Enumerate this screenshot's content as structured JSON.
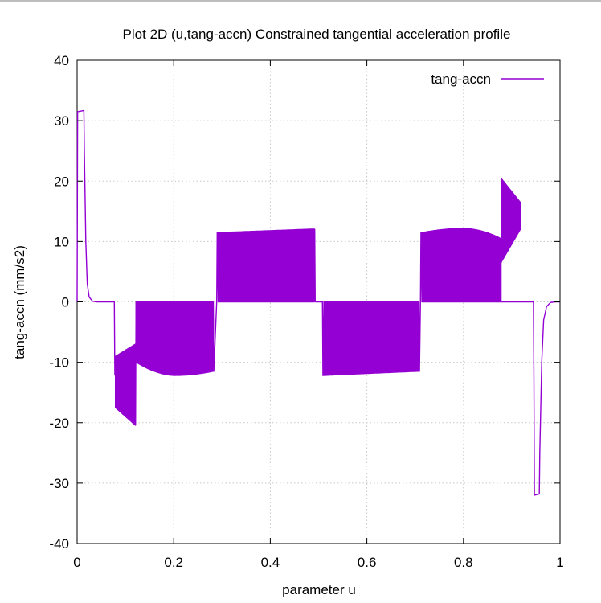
{
  "chart_data": {
    "type": "line",
    "title": "Plot 2D (u,tang-accn) Constrained tangential acceleration profile",
    "xlabel": "parameter u",
    "ylabel": "tang-accn (mm/s2)",
    "xlim": [
      0,
      1
    ],
    "ylim": [
      -40,
      40
    ],
    "x_ticks": [
      {
        "value": 0,
        "label": "0"
      },
      {
        "value": 0.2,
        "label": "0.2"
      },
      {
        "value": 0.4,
        "label": "0.4"
      },
      {
        "value": 0.6,
        "label": "0.6"
      },
      {
        "value": 0.8,
        "label": "0.8"
      },
      {
        "value": 1,
        "label": "1"
      }
    ],
    "y_ticks": [
      {
        "value": -40,
        "label": "-40"
      },
      {
        "value": -30,
        "label": "-30"
      },
      {
        "value": -20,
        "label": "-20"
      },
      {
        "value": -10,
        "label": "-10"
      },
      {
        "value": 0,
        "label": "0"
      },
      {
        "value": 10,
        "label": "10"
      },
      {
        "value": 20,
        "label": "20"
      },
      {
        "value": 30,
        "label": "30"
      },
      {
        "value": 40,
        "label": "40"
      }
    ],
    "grid": true,
    "legend": {
      "position": "top-right"
    },
    "series": [
      {
        "name": "tang-accn",
        "color": "#9400d3",
        "line_points": [
          {
            "x": 0.0,
            "y": 0.0
          },
          {
            "x": 0.001,
            "y": 31.5
          },
          {
            "x": 0.014,
            "y": 31.7
          },
          {
            "x": 0.015,
            "y": 25.0
          },
          {
            "x": 0.018,
            "y": 10.0
          },
          {
            "x": 0.021,
            "y": 3.0
          },
          {
            "x": 0.025,
            "y": 0.8
          },
          {
            "x": 0.032,
            "y": 0.1
          },
          {
            "x": 0.04,
            "y": 0.0
          },
          {
            "x": 0.077,
            "y": 0.0
          },
          {
            "x": 0.078,
            "y": -12.0
          },
          {
            "x": 0.121,
            "y": -20.4
          },
          {
            "x": 0.122,
            "y": 0.0
          },
          {
            "x": 0.282,
            "y": 0.0
          },
          {
            "x": 0.283,
            "y": -11.5
          },
          {
            "x": 0.289,
            "y": 0.0
          },
          {
            "x": 0.29,
            "y": 11.5
          },
          {
            "x": 0.292,
            "y": 0.0
          },
          {
            "x": 0.491,
            "y": 0.0
          },
          {
            "x": 0.492,
            "y": 12.0
          },
          {
            "x": 0.493,
            "y": 0.0
          },
          {
            "x": 0.508,
            "y": 0.0
          },
          {
            "x": 0.509,
            "y": -12.2
          },
          {
            "x": 0.511,
            "y": 0.0
          },
          {
            "x": 0.708,
            "y": 0.0
          },
          {
            "x": 0.709,
            "y": -11.5
          },
          {
            "x": 0.711,
            "y": 0.0
          },
          {
            "x": 0.712,
            "y": 11.5
          },
          {
            "x": 0.714,
            "y": 0.0
          },
          {
            "x": 0.918,
            "y": 0.0
          },
          {
            "x": 0.923,
            "y": 0.0
          },
          {
            "x": 0.945,
            "y": 0.0
          },
          {
            "x": 0.946,
            "y": -13.0
          },
          {
            "x": 0.947,
            "y": -32.0
          },
          {
            "x": 0.957,
            "y": -31.8
          },
          {
            "x": 0.958,
            "y": -25.0
          },
          {
            "x": 0.962,
            "y": -10.0
          },
          {
            "x": 0.966,
            "y": -3.0
          },
          {
            "x": 0.972,
            "y": -0.8
          },
          {
            "x": 0.98,
            "y": -0.1
          },
          {
            "x": 0.99,
            "y": 0.0
          },
          {
            "x": 1.0,
            "y": 0.0
          }
        ],
        "oscillation_bands": [
          {
            "x_start": 0.079,
            "x_end": 0.12,
            "y_low_start": -17.5,
            "y_low_end": -20.4,
            "y_high_start": -9.0,
            "y_high_end": -7.0
          },
          {
            "x_start": 0.122,
            "x_end": 0.282,
            "y_low_start": -10.0,
            "y_low_mid": -12.2,
            "y_low_end": -11.5,
            "y_high_start": 0.0,
            "y_high_end": 0.0
          },
          {
            "x_start": 0.292,
            "x_end": 0.491,
            "y_low_start": 0.0,
            "y_low_end": 0.0,
            "y_high_start": 11.5,
            "y_high_end": 12.1
          },
          {
            "x_start": 0.511,
            "x_end": 0.708,
            "y_low_start": -12.2,
            "y_low_end": -11.5,
            "y_high_start": 0.0,
            "y_high_end": 0.0
          },
          {
            "x_start": 0.714,
            "x_end": 0.878,
            "y_low_start": 0.0,
            "y_low_end": 0.0,
            "y_high_start": 11.5,
            "y_high_mid": 12.2,
            "y_high_end": 10.5
          },
          {
            "x_start": 0.878,
            "x_end": 0.918,
            "y_low_start": 6.5,
            "y_low_end": 12.0,
            "y_high_start": 20.5,
            "y_high_end": 16.5
          }
        ]
      }
    ]
  }
}
